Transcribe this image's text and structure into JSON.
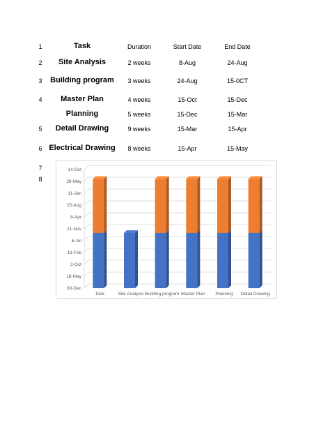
{
  "table": {
    "header": {
      "num": "1",
      "task": "Task",
      "duration": "Duration",
      "start": "Start Date",
      "end": "End Date"
    },
    "rows": [
      {
        "num": "2",
        "task": "Site Analysis",
        "duration": "2 weeks",
        "start": "8-Aug",
        "end": "24-Aug"
      },
      {
        "num": "3",
        "task": "Building program",
        "duration": "3 weeks",
        "start": "24-Aug",
        "end": "15-0CT"
      },
      {
        "num": "4",
        "task": "Master Plan",
        "duration": "4 weeks",
        "start": "15-Oct",
        "end": "15-Dec"
      },
      {
        "num": "",
        "task": "Planning",
        "duration": "5 weeks",
        "start": "15-Dec",
        "end": "15-Mar"
      },
      {
        "num": "5",
        "task": "Detail Drawing",
        "duration": "9 weeks",
        "start": "15-Mar",
        "end": "15-Apr"
      },
      {
        "num": "6",
        "task": "Electrical Drawing",
        "duration": "8 weeks",
        "start": "15-Apr",
        "end": "15-May"
      }
    ]
  },
  "extra_numbers": [
    "7",
    "8"
  ],
  "chart_data": {
    "type": "bar",
    "stacked": true,
    "three_d": true,
    "categories": [
      "Task",
      "Site Analysis",
      "Building program",
      "Master Plan",
      "Planning",
      "Detail Drawing"
    ],
    "y_tick_labels": [
      "30-Dec",
      "18-May",
      "3-Oct",
      "18-Feb",
      "6-Jul",
      "21-Nov",
      "8-Apr",
      "25-Aug",
      "11-Jan",
      "29-May",
      "14-Oct"
    ],
    "ylim": [
      0,
      10
    ],
    "series": [
      {
        "color": "#4472c4",
        "values": [
          4.65,
          4.65,
          4.65,
          4.65,
          4.65,
          4.65
        ]
      },
      {
        "color": "#ed7d31",
        "values": [
          4.55,
          0,
          4.55,
          4.55,
          4.55,
          4.55
        ]
      }
    ],
    "grid": true
  }
}
